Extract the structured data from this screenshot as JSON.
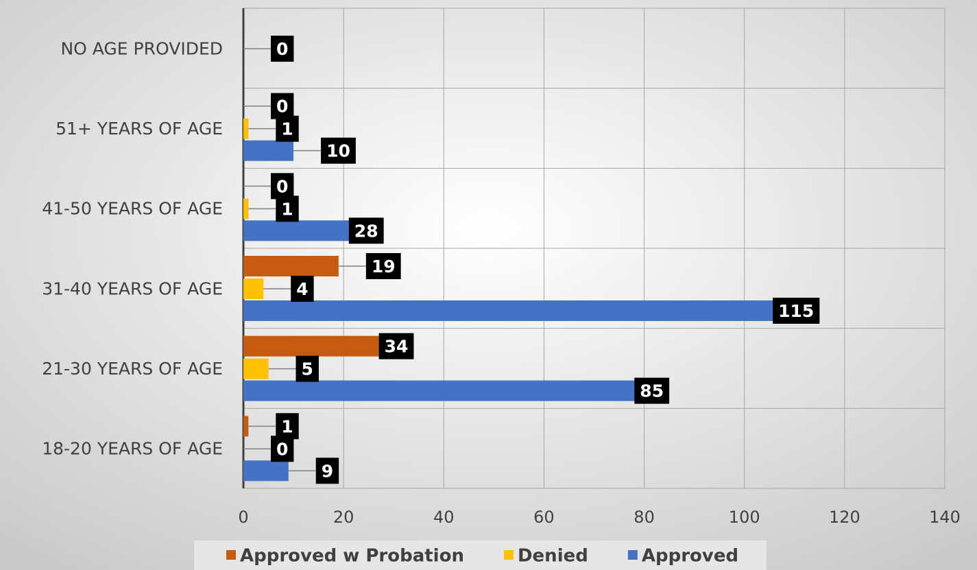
{
  "chart_data": {
    "type": "hbar",
    "categories": [
      "18-20 YEARS OF AGE",
      "21-30 YEARS OF AGE",
      "31-40 YEARS OF AGE",
      "41-50 YEARS OF AGE",
      "51+ YEARS OF AGE",
      "NO AGE PROVIDED"
    ],
    "series": [
      {
        "name": "Approved w Probation",
        "color": "#c55a11",
        "values": [
          1,
          34,
          19,
          0,
          0,
          null
        ]
      },
      {
        "name": "Denied",
        "color": "#ffc000",
        "values": [
          0,
          5,
          4,
          1,
          1,
          0
        ]
      },
      {
        "name": "Approved",
        "color": "#4472c4",
        "values": [
          9,
          85,
          115,
          28,
          10,
          null
        ]
      }
    ],
    "xlim": [
      0,
      140
    ],
    "xticks": [
      0,
      20,
      40,
      60,
      80,
      100,
      120,
      140
    ],
    "grid": true,
    "legend": "bottom"
  }
}
